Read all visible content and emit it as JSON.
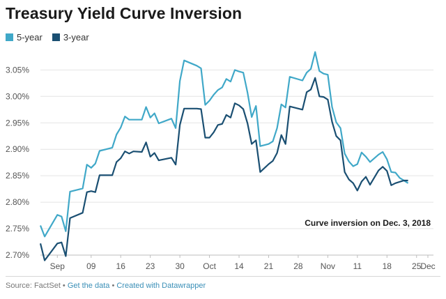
{
  "header": {
    "title": "Treasury Yield Curve Inversion"
  },
  "footer": {
    "source": "Source: FactSet",
    "sep1": " • ",
    "get_data": "Get the data",
    "sep2": " • ",
    "created": "Created with Datawrapper"
  },
  "chart_data": {
    "type": "line",
    "title": "Treasury Yield Curve Inversion",
    "xlabel": "",
    "ylabel": "",
    "ylim": [
      2.7,
      3.09
    ],
    "xlim": [
      0,
      93
    ],
    "yticks": [
      2.7,
      2.75,
      2.8,
      2.85,
      2.9,
      2.95,
      3.0,
      3.05
    ],
    "ytick_labels": [
      "2.70%",
      "2.75%",
      "2.80%",
      "2.85%",
      "2.90%",
      "2.95%",
      "3.00%",
      "3.05%"
    ],
    "xticks": [
      {
        "x": 4,
        "label": "Sep"
      },
      {
        "x": 12,
        "label": "09"
      },
      {
        "x": 19,
        "label": "16"
      },
      {
        "x": 26,
        "label": "23"
      },
      {
        "x": 33,
        "label": "30"
      },
      {
        "x": 40,
        "label": "Oct"
      },
      {
        "x": 47,
        "label": "14"
      },
      {
        "x": 54,
        "label": "21"
      },
      {
        "x": 61,
        "label": "28"
      },
      {
        "x": 68,
        "label": "Nov"
      },
      {
        "x": 75,
        "label": "11"
      },
      {
        "x": 82,
        "label": "18"
      },
      {
        "x": 89,
        "label": "25"
      },
      {
        "x": 96,
        "label": "Dec"
      }
    ],
    "legend_position": "top-left",
    "grid": true,
    "annotation": "Curve inversion on Dec. 3, 2018",
    "series": [
      {
        "name": "5-year",
        "color": "#40a8c8",
        "points": [
          [
            0,
            2.756
          ],
          [
            1,
            2.735
          ],
          [
            4,
            2.776
          ],
          [
            5,
            2.773
          ],
          [
            6,
            2.745
          ],
          [
            7,
            2.82
          ],
          [
            10,
            2.826
          ],
          [
            11,
            2.871
          ],
          [
            12,
            2.865
          ],
          [
            13,
            2.873
          ],
          [
            14,
            2.897
          ],
          [
            17,
            2.903
          ],
          [
            18,
            2.928
          ],
          [
            19,
            2.941
          ],
          [
            20,
            2.962
          ],
          [
            21,
            2.956
          ],
          [
            24,
            2.956
          ],
          [
            25,
            2.98
          ],
          [
            26,
            2.96
          ],
          [
            27,
            2.968
          ],
          [
            28,
            2.949
          ],
          [
            31,
            2.958
          ],
          [
            32,
            2.94
          ],
          [
            33,
            3.029
          ],
          [
            34,
            3.068
          ],
          [
            37,
            3.058
          ],
          [
            38,
            3.053
          ],
          [
            39,
            2.984
          ],
          [
            40,
            2.992
          ],
          [
            41,
            3.003
          ],
          [
            42,
            3.012
          ],
          [
            43,
            3.017
          ],
          [
            44,
            3.033
          ],
          [
            45,
            3.028
          ],
          [
            46,
            3.05
          ],
          [
            47,
            3.047
          ],
          [
            48,
            3.045
          ],
          [
            49,
            3.007
          ],
          [
            50,
            2.961
          ],
          [
            51,
            2.982
          ],
          [
            52,
            2.906
          ],
          [
            54,
            2.91
          ],
          [
            55,
            2.915
          ],
          [
            56,
            2.94
          ],
          [
            57,
            2.985
          ],
          [
            58,
            2.979
          ],
          [
            59,
            3.037
          ],
          [
            62,
            3.03
          ],
          [
            63,
            3.045
          ],
          [
            64,
            3.052
          ],
          [
            65,
            3.084
          ],
          [
            66,
            3.048
          ],
          [
            67,
            3.043
          ],
          [
            68,
            3.041
          ],
          [
            69,
            2.98
          ],
          [
            70,
            2.951
          ],
          [
            71,
            2.94
          ],
          [
            72,
            2.892
          ],
          [
            73,
            2.877
          ],
          [
            74,
            2.868
          ],
          [
            75,
            2.872
          ],
          [
            76,
            2.894
          ],
          [
            77,
            2.886
          ],
          [
            78,
            2.876
          ],
          [
            80,
            2.89
          ],
          [
            81,
            2.895
          ],
          [
            82,
            2.881
          ],
          [
            83,
            2.857
          ],
          [
            84,
            2.856
          ],
          [
            85,
            2.846
          ],
          [
            87,
            2.836
          ]
        ]
      },
      {
        "name": "3-year",
        "color": "#1a4f72",
        "points": [
          [
            0,
            2.722
          ],
          [
            1,
            2.69
          ],
          [
            4,
            2.722
          ],
          [
            5,
            2.724
          ],
          [
            6,
            2.698
          ],
          [
            7,
            2.77
          ],
          [
            10,
            2.78
          ],
          [
            11,
            2.819
          ],
          [
            12,
            2.821
          ],
          [
            13,
            2.819
          ],
          [
            14,
            2.851
          ],
          [
            17,
            2.851
          ],
          [
            18,
            2.876
          ],
          [
            19,
            2.883
          ],
          [
            20,
            2.896
          ],
          [
            21,
            2.892
          ],
          [
            22,
            2.896
          ],
          [
            24,
            2.895
          ],
          [
            25,
            2.913
          ],
          [
            26,
            2.886
          ],
          [
            27,
            2.893
          ],
          [
            28,
            2.879
          ],
          [
            31,
            2.884
          ],
          [
            32,
            2.871
          ],
          [
            33,
            2.946
          ],
          [
            34,
            2.977
          ],
          [
            37,
            2.977
          ],
          [
            38,
            2.976
          ],
          [
            39,
            2.922
          ],
          [
            40,
            2.922
          ],
          [
            41,
            2.932
          ],
          [
            42,
            2.946
          ],
          [
            43,
            2.948
          ],
          [
            44,
            2.965
          ],
          [
            45,
            2.96
          ],
          [
            46,
            2.987
          ],
          [
            47,
            2.983
          ],
          [
            48,
            2.976
          ],
          [
            49,
            2.949
          ],
          [
            50,
            2.91
          ],
          [
            51,
            2.917
          ],
          [
            52,
            2.857
          ],
          [
            54,
            2.872
          ],
          [
            55,
            2.878
          ],
          [
            56,
            2.893
          ],
          [
            57,
            2.927
          ],
          [
            58,
            2.91
          ],
          [
            59,
            2.981
          ],
          [
            62,
            2.975
          ],
          [
            63,
            3.008
          ],
          [
            64,
            3.013
          ],
          [
            65,
            3.035
          ],
          [
            66,
            3.0
          ],
          [
            67,
            2.999
          ],
          [
            68,
            2.994
          ],
          [
            69,
            2.952
          ],
          [
            70,
            2.925
          ],
          [
            71,
            2.917
          ],
          [
            72,
            2.857
          ],
          [
            73,
            2.843
          ],
          [
            74,
            2.836
          ],
          [
            75,
            2.822
          ],
          [
            76,
            2.839
          ],
          [
            77,
            2.848
          ],
          [
            78,
            2.833
          ],
          [
            80,
            2.86
          ],
          [
            81,
            2.867
          ],
          [
            82,
            2.859
          ],
          [
            83,
            2.832
          ],
          [
            84,
            2.836
          ],
          [
            86,
            2.841
          ],
          [
            87,
            2.841
          ]
        ]
      }
    ]
  }
}
